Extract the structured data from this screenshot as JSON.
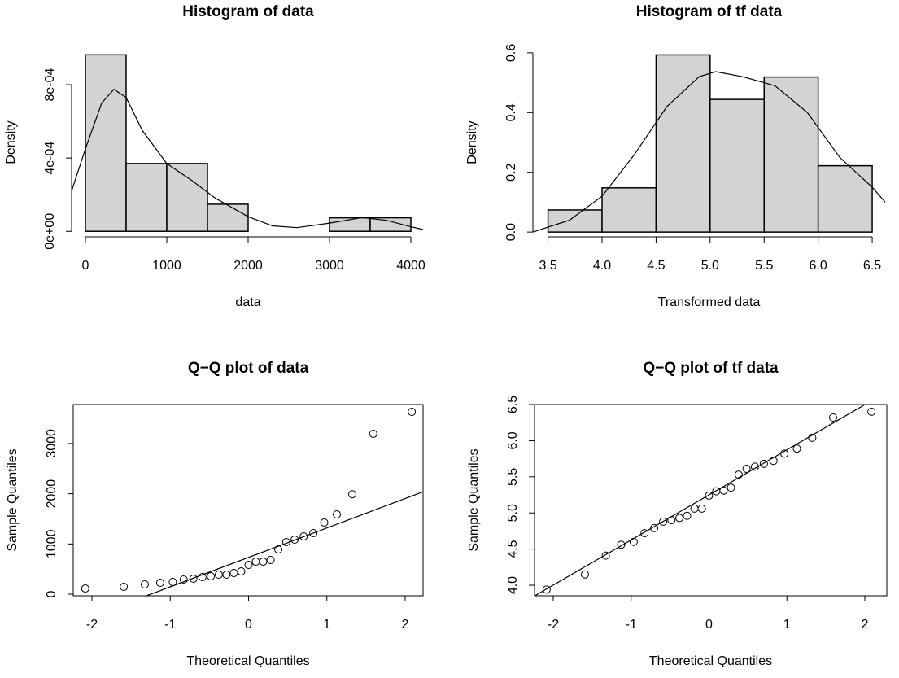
{
  "chart_data": [
    {
      "type": "histogram",
      "title": "Histogram of data",
      "xlabel": "data",
      "ylabel": "Density",
      "bins": [
        0,
        500,
        1000,
        1500,
        2000,
        2500,
        3000,
        3500,
        4000
      ],
      "values": [
        0.000963,
        0.00037,
        0.00037,
        0.000148,
        0,
        0,
        7.4e-05,
        7.4e-05
      ],
      "color": "#d3d3d3",
      "density": {
        "x": [
          -170,
          0,
          200,
          350,
          500,
          700,
          1000,
          1300,
          1600,
          2000,
          2300,
          2600,
          3000,
          3400,
          3700,
          4000,
          4150
        ],
        "y": [
          0.00022,
          0.00045,
          0.0007,
          0.000775,
          0.00073,
          0.00055,
          0.00037,
          0.00028,
          0.00018,
          8e-05,
          3e-05,
          2e-05,
          4.5e-05,
          7.5e-05,
          6e-05,
          2.5e-05,
          1e-05
        ]
      },
      "xlim": [
        -170,
        4170
      ],
      "ylim": [
        -3e-05,
        0.001
      ],
      "xticks": [
        0,
        1000,
        2000,
        3000,
        4000
      ],
      "yticks": [
        {
          "value": 0,
          "label": "0e+00"
        },
        {
          "value": 0.0004,
          "label": "4e-04"
        },
        {
          "value": 0.0008,
          "label": "8e-04"
        }
      ]
    },
    {
      "type": "histogram",
      "title": "Histogram of tf data",
      "xlabel": "Transformed data",
      "ylabel": "Density",
      "bins": [
        3.5,
        4,
        4.5,
        5,
        5.5,
        6,
        6.5
      ],
      "values": [
        0.074,
        0.148,
        0.593,
        0.444,
        0.519,
        0.222
      ],
      "color": "#d3d3d3",
      "density": {
        "x": [
          3.36,
          3.7,
          4.0,
          4.3,
          4.6,
          4.9,
          5.05,
          5.3,
          5.6,
          5.9,
          6.2,
          6.5,
          6.62
        ],
        "y": [
          0.0,
          0.04,
          0.12,
          0.26,
          0.42,
          0.52,
          0.537,
          0.52,
          0.49,
          0.4,
          0.25,
          0.15,
          0.1
        ]
      },
      "xlim": [
        3.36,
        6.62
      ],
      "ylim": [
        -0.016,
        0.616
      ],
      "xticks": [
        3.5,
        {
          "value": 4,
          "label": "4.0"
        },
        4.5,
        {
          "value": 5,
          "label": "5.0"
        },
        5.5,
        {
          "value": 6,
          "label": "6.0"
        },
        6.5
      ],
      "yticks": [
        {
          "value": 0,
          "label": "0.0"
        },
        0.2,
        0.4,
        0.6
      ]
    },
    {
      "type": "scatter",
      "title": "Q−Q plot of data",
      "xlabel": "Theoretical Quantiles",
      "ylabel": "Sample Quantiles",
      "x": [
        -2.085,
        -1.593,
        -1.325,
        -1.128,
        -0.967,
        -0.828,
        -0.704,
        -0.589,
        -0.482,
        -0.38,
        -0.282,
        -0.187,
        -0.093,
        0,
        0.093,
        0.187,
        0.282,
        0.38,
        0.482,
        0.589,
        0.704,
        0.828,
        0.967,
        1.128,
        1.325,
        1.593,
        2.085
      ],
      "values": [
        113,
        146,
        195,
        227,
        243,
        292,
        308,
        340,
        357,
        389,
        389,
        421,
        454,
        583,
        648,
        648,
        681,
        891,
        1037,
        1086,
        1150,
        1215,
        1426,
        1588,
        1990,
        3193,
        3630
      ],
      "line": {
        "intercept": 732,
        "slope": 586
      },
      "xlim": [
        -2.239,
        2.229
      ],
      "ylim": [
        -32,
        3776
      ],
      "xticks": [
        -2,
        -1,
        0,
        1,
        2
      ],
      "yticks": [
        0,
        1000,
        2000,
        3000
      ]
    },
    {
      "type": "scatter",
      "title": "Q−Q plot of tf data",
      "xlabel": "Theoretical Quantiles",
      "ylabel": "Sample Quantiles",
      "x": [
        -2.085,
        -1.593,
        -1.325,
        -1.128,
        -0.967,
        -0.828,
        -0.704,
        -0.589,
        -0.482,
        -0.38,
        -0.282,
        -0.187,
        -0.093,
        0,
        0.093,
        0.187,
        0.282,
        0.38,
        0.482,
        0.589,
        0.704,
        0.828,
        0.967,
        1.128,
        1.325,
        1.593,
        2.085
      ],
      "values": [
        3.94,
        4.15,
        4.41,
        4.56,
        4.6,
        4.72,
        4.79,
        4.88,
        4.9,
        4.93,
        4.96,
        5.06,
        5.06,
        5.24,
        5.3,
        5.31,
        5.35,
        5.53,
        5.61,
        5.64,
        5.68,
        5.72,
        5.82,
        5.89,
        6.04,
        6.32,
        6.4
      ],
      "line": {
        "intercept": 5.25,
        "slope": 0.624
      },
      "xlim": [
        -2.24,
        2.282
      ],
      "ylim": [
        3.854,
        6.5
      ],
      "xticks": [
        -2,
        -1,
        0,
        1,
        2
      ],
      "yticks": [
        {
          "value": 4,
          "label": "4.0"
        },
        4.5,
        {
          "value": 5,
          "label": "5.0"
        },
        5.5,
        {
          "value": 6,
          "label": "6.0"
        },
        6.5
      ]
    }
  ]
}
